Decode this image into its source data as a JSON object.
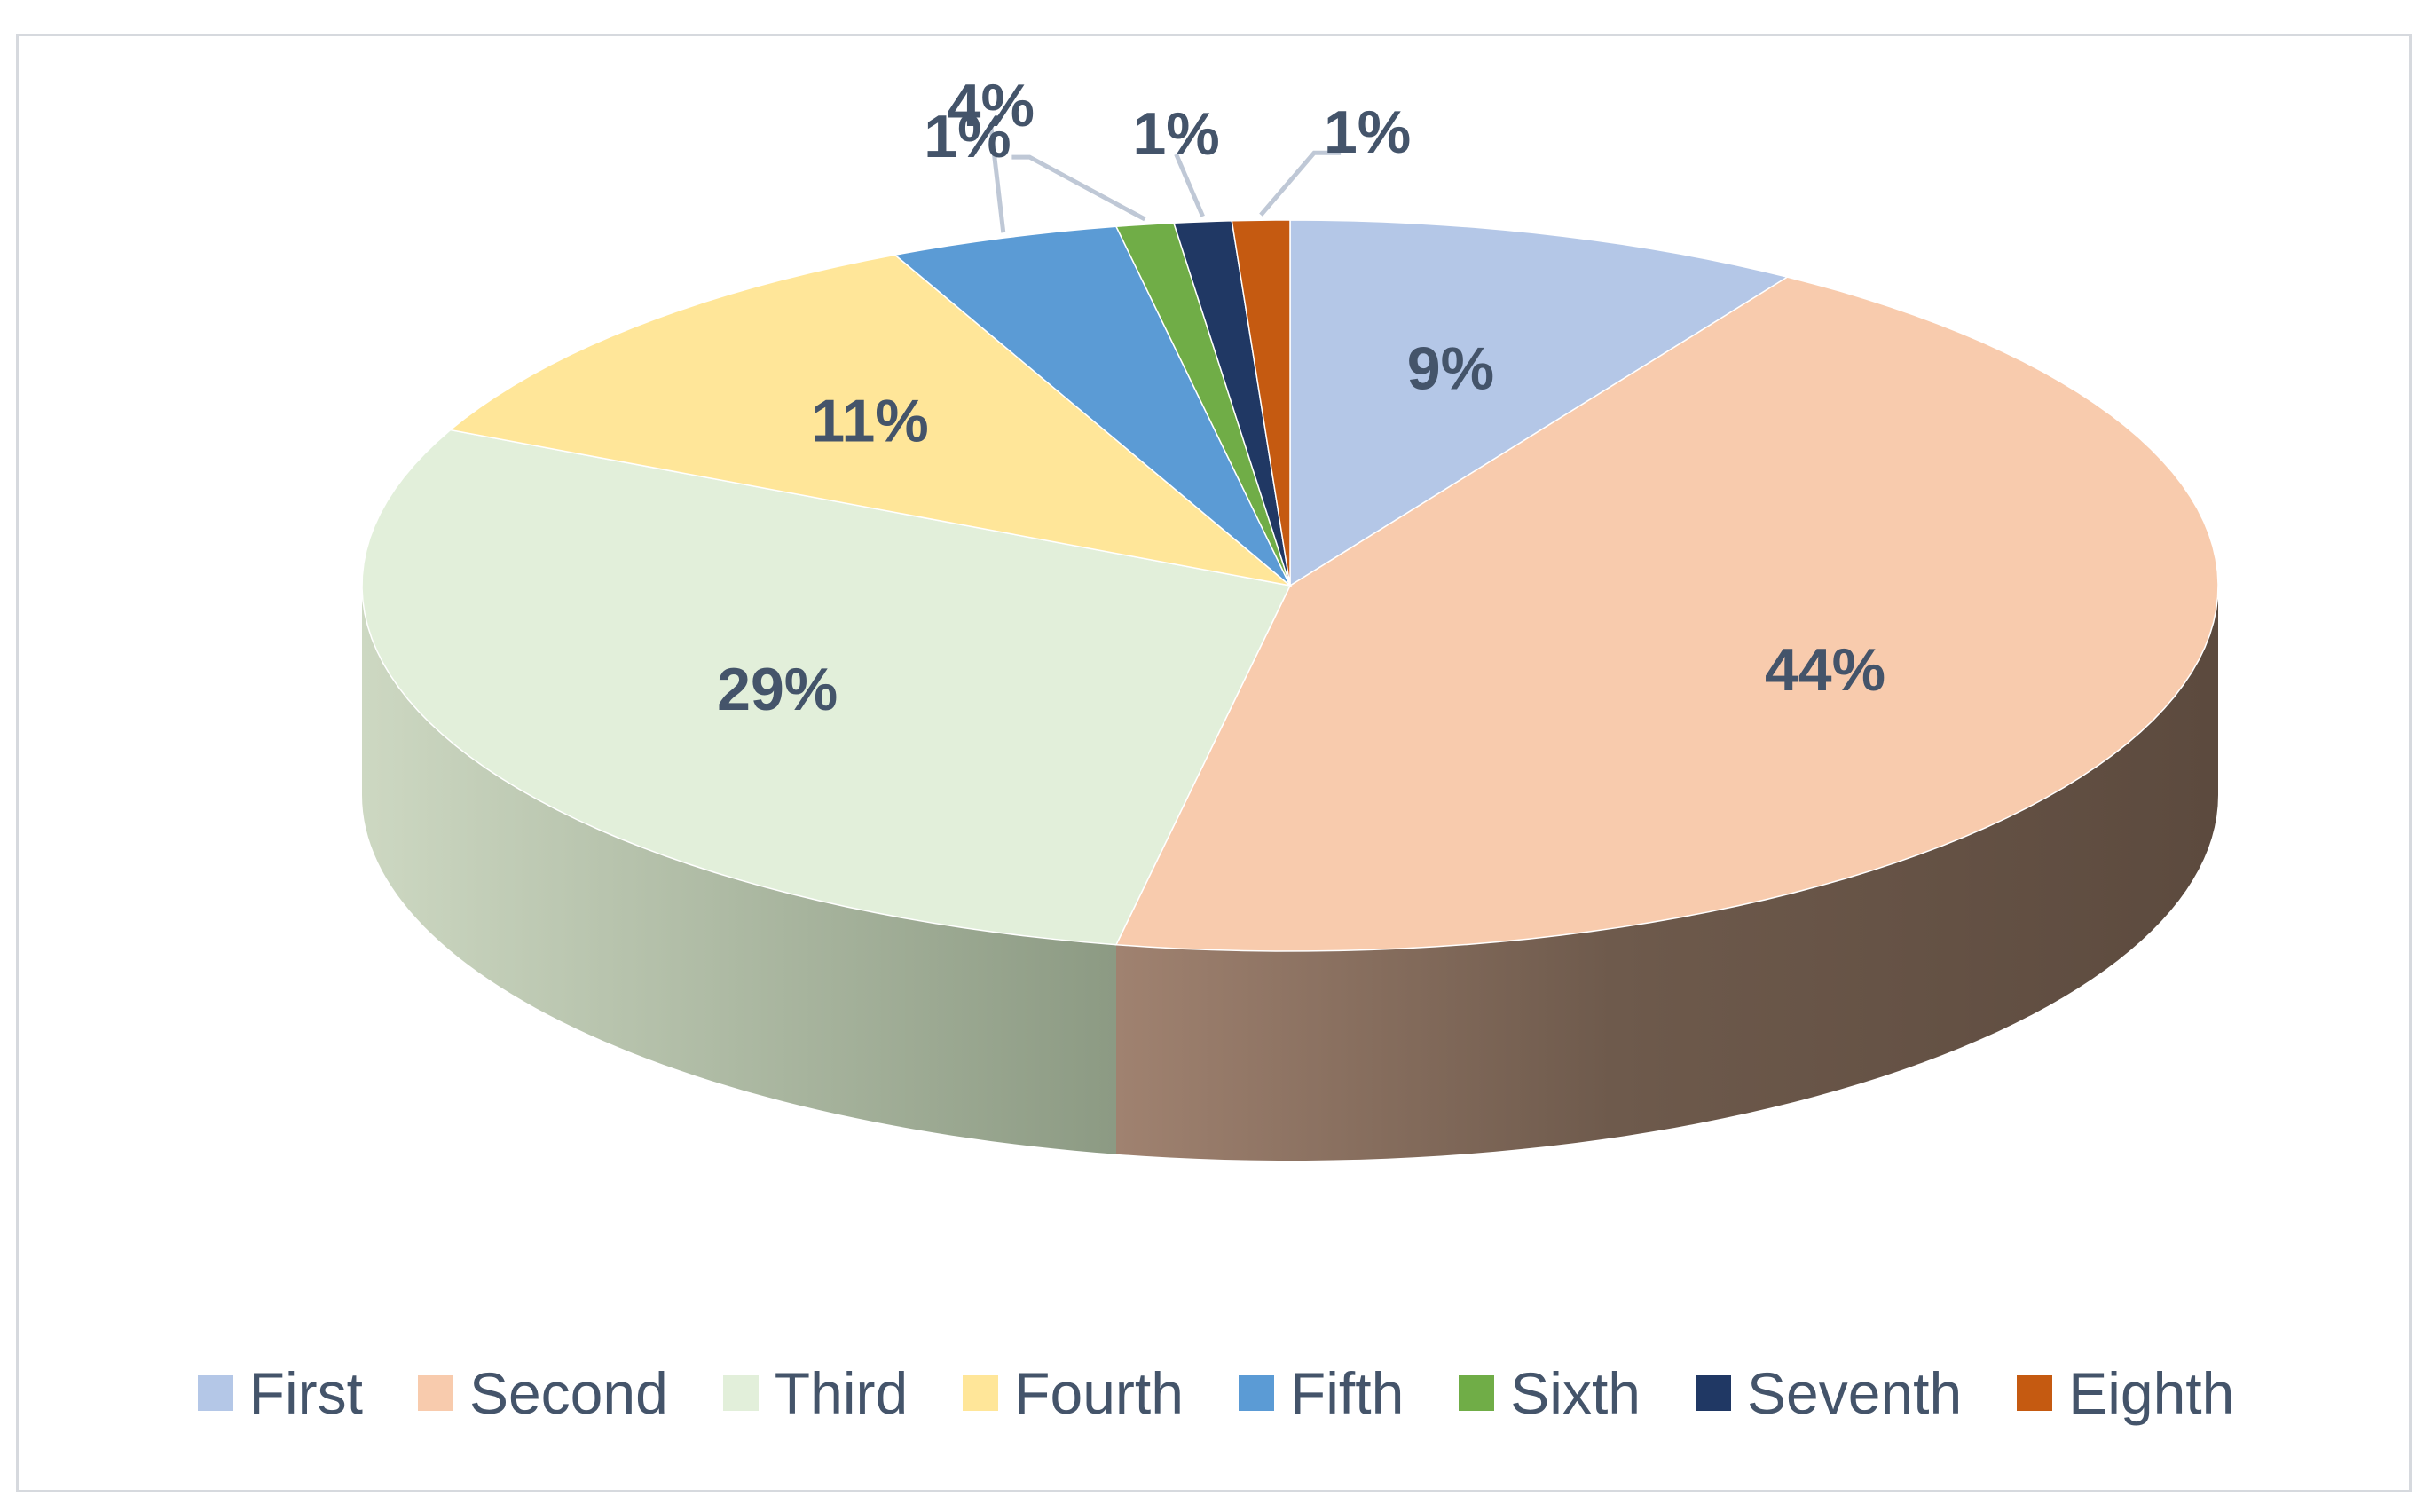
{
  "chart_data": {
    "type": "pie",
    "style": "3d",
    "categories": [
      "First",
      "Second",
      "Third",
      "Fourth",
      "Fifth",
      "Sixth",
      "Seventh",
      "Eighth"
    ],
    "values": [
      9,
      44,
      29,
      11,
      4,
      1,
      1,
      1
    ],
    "labels": [
      "9%",
      "44%",
      "29%",
      "11%",
      "4%",
      "1%",
      "1%",
      "1%"
    ],
    "title": "",
    "legend_position": "bottom",
    "colors": [
      "#b4c7e7",
      "#f8cbad",
      "#e2efda",
      "#ffe699",
      "#5b9bd5",
      "#70ad47",
      "#203864",
      "#c55a11"
    ],
    "label_color": "#44546a"
  }
}
